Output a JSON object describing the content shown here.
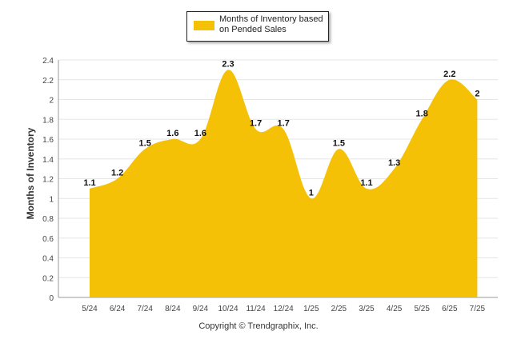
{
  "chart_data": {
    "type": "area",
    "categories": [
      "5/24",
      "6/24",
      "7/24",
      "8/24",
      "9/24",
      "10/24",
      "11/24",
      "12/24",
      "1/25",
      "2/25",
      "3/25",
      "4/25",
      "5/25",
      "6/25",
      "7/25"
    ],
    "series": [
      {
        "name": "Months of Inventory based on Pended Sales",
        "values": [
          1.1,
          1.2,
          1.5,
          1.6,
          1.6,
          2.3,
          1.7,
          1.7,
          1,
          1.5,
          1.1,
          1.3,
          1.8,
          2.2,
          2
        ]
      }
    ],
    "data_labels": [
      "1.1",
      "1.2",
      "1.5",
      "1.6",
      "1.6",
      "2.3",
      "1.7",
      "1.7",
      "1",
      "1.5",
      "1.1",
      "1.3",
      "1.8",
      "2.2",
      "2"
    ],
    "ylabel": "Months of Inventory",
    "xlabel": "",
    "ylim": [
      0,
      2.4
    ],
    "yticks": [
      "0",
      "0.2",
      "0.4",
      "0.6",
      "0.8",
      "1",
      "1.2",
      "1.4",
      "1.6",
      "1.8",
      "2",
      "2.2",
      "2.4"
    ],
    "grid": true,
    "legend_position": "top-center",
    "colors": {
      "series": "#F5C107",
      "grid": "#e6e6e6",
      "axis": "#999999"
    }
  },
  "legend": {
    "label": "Months of Inventory based on Pended Sales"
  },
  "footer": {
    "copyright": "Copyright © Trendgraphix, Inc."
  }
}
